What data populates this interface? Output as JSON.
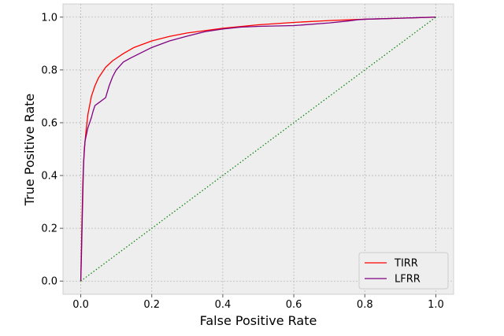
{
  "chart_data": {
    "type": "line",
    "xlabel": "False Positive Rate",
    "ylabel": "True Positive Rate",
    "xlim": [
      -0.05,
      1.05
    ],
    "ylim": [
      -0.05,
      1.05
    ],
    "x_ticks": [
      0.0,
      0.2,
      0.4,
      0.6,
      0.8,
      1.0
    ],
    "x_tick_labels": [
      "0.0",
      "0.2",
      "0.4",
      "0.6",
      "0.8",
      "1.0"
    ],
    "y_ticks": [
      0.0,
      0.2,
      0.4,
      0.6,
      0.8,
      1.0
    ],
    "y_tick_labels": [
      "0.0",
      "0.2",
      "0.4",
      "0.6",
      "0.8",
      "1.0"
    ],
    "grid": true,
    "legend_position": "bottom-right",
    "series": [
      {
        "name": "TIRR",
        "color": "#ff0000",
        "style": "solid",
        "x": [
          0.0,
          0.003,
          0.006,
          0.01,
          0.015,
          0.02,
          0.03,
          0.04,
          0.05,
          0.07,
          0.09,
          0.12,
          0.15,
          0.2,
          0.25,
          0.3,
          0.4,
          0.5,
          0.6,
          0.7,
          0.8,
          0.9,
          1.0
        ],
        "y": [
          0.0,
          0.2,
          0.38,
          0.5,
          0.57,
          0.63,
          0.7,
          0.74,
          0.77,
          0.81,
          0.835,
          0.862,
          0.885,
          0.91,
          0.927,
          0.94,
          0.958,
          0.971,
          0.98,
          0.987,
          0.992,
          0.996,
          1.0
        ]
      },
      {
        "name": "LFRR",
        "color": "#800080",
        "style": "solid",
        "x": [
          0.0,
          0.002,
          0.005,
          0.008,
          0.012,
          0.02,
          0.03,
          0.035,
          0.04,
          0.05,
          0.07,
          0.08,
          0.09,
          0.1,
          0.12,
          0.14,
          0.17,
          0.2,
          0.25,
          0.3,
          0.35,
          0.4,
          0.45,
          0.5,
          0.6,
          0.7,
          0.75,
          0.78,
          0.8,
          0.85,
          0.9,
          0.95,
          1.0
        ],
        "y": [
          0.0,
          0.1,
          0.28,
          0.45,
          0.53,
          0.58,
          0.62,
          0.645,
          0.665,
          0.675,
          0.695,
          0.74,
          0.775,
          0.8,
          0.83,
          0.845,
          0.865,
          0.885,
          0.91,
          0.928,
          0.945,
          0.955,
          0.962,
          0.965,
          0.968,
          0.978,
          0.985,
          0.99,
          0.992,
          0.994,
          0.996,
          0.998,
          1.0
        ]
      },
      {
        "name": "",
        "color": "#008000",
        "style": "dotted",
        "x": [
          0.0,
          1.0
        ],
        "y": [
          0.0,
          1.0
        ]
      }
    ]
  }
}
